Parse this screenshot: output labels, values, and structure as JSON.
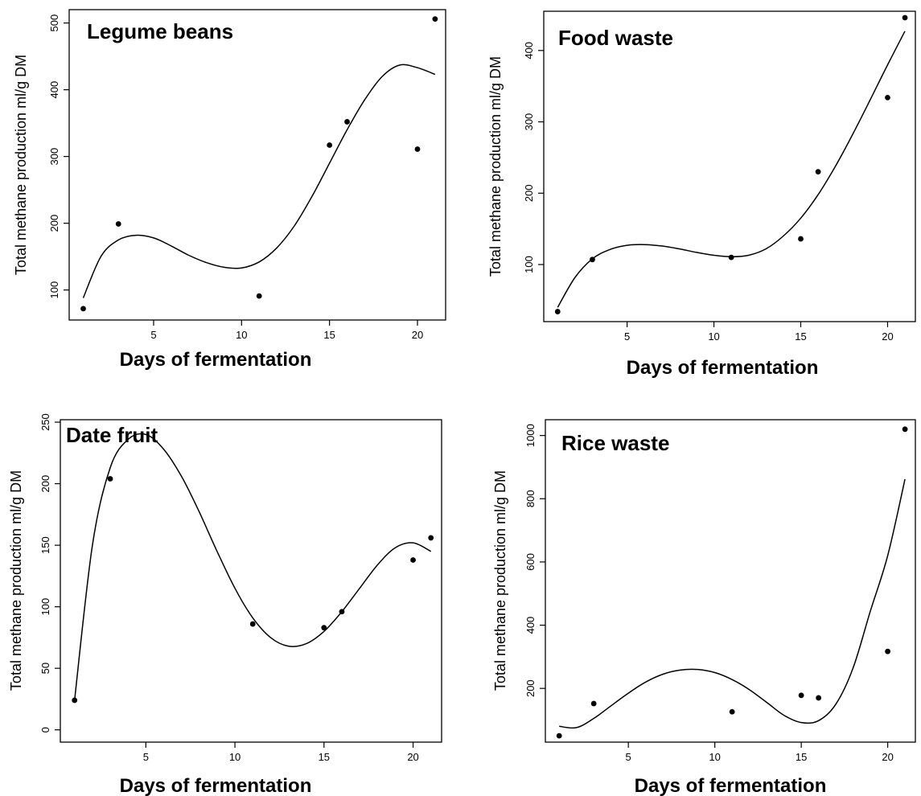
{
  "chart_data": [
    {
      "type": "scatter",
      "title": "Legume beans",
      "xlabel": "Days of fermentation",
      "ylabel": "Total methane production ml/g DM",
      "xlim": [
        0.2,
        21.6
      ],
      "ylim": [
        55,
        520
      ],
      "xticks": [
        5,
        10,
        15,
        20
      ],
      "yticks": [
        100,
        200,
        300,
        400,
        500
      ],
      "points": [
        {
          "x": 1,
          "y": 72
        },
        {
          "x": 3,
          "y": 199
        },
        {
          "x": 11,
          "y": 91
        },
        {
          "x": 15,
          "y": 317
        },
        {
          "x": 16,
          "y": 352
        },
        {
          "x": 20,
          "y": 311
        },
        {
          "x": 21,
          "y": 506
        }
      ],
      "fit": {
        "x": [
          1,
          2,
          3,
          4,
          5,
          6,
          7,
          8,
          9,
          10,
          11,
          12,
          13,
          14,
          15,
          16,
          17,
          18,
          19,
          20,
          21
        ],
        "y": [
          88,
          150,
          175,
          182,
          178,
          166,
          152,
          141,
          134,
          133,
          142,
          163,
          196,
          240,
          290,
          340,
          385,
          420,
          437,
          433,
          423
        ]
      }
    },
    {
      "type": "scatter",
      "title": "Food waste",
      "xlabel": "Days of fermentation",
      "ylabel": "Total methane production ml/g DM",
      "xlim": [
        0.2,
        21.6
      ],
      "ylim": [
        20,
        455
      ],
      "xticks": [
        5,
        10,
        15,
        20
      ],
      "yticks": [
        100,
        200,
        300,
        400
      ],
      "points": [
        {
          "x": 1,
          "y": 34
        },
        {
          "x": 3,
          "y": 107
        },
        {
          "x": 11,
          "y": 110
        },
        {
          "x": 15,
          "y": 136
        },
        {
          "x": 16,
          "y": 230
        },
        {
          "x": 20,
          "y": 334
        },
        {
          "x": 21,
          "y": 446
        }
      ],
      "fit": {
        "x": [
          1,
          2,
          3,
          4,
          5,
          6,
          7,
          8,
          9,
          10,
          11,
          12,
          13,
          14,
          15,
          16,
          17,
          18,
          19,
          20,
          21
        ],
        "y": [
          40,
          82,
          108,
          121,
          127,
          128,
          126,
          122,
          117,
          113,
          111,
          113,
          122,
          140,
          165,
          198,
          238,
          283,
          331,
          380,
          427
        ]
      }
    },
    {
      "type": "scatter",
      "title": "Date fruit",
      "xlabel": "Days of fermentation",
      "ylabel": "Total methane production ml/g DM",
      "xlim": [
        0.2,
        21.6
      ],
      "ylim": [
        -10,
        252
      ],
      "xticks": [
        5,
        10,
        15,
        20
      ],
      "yticks": [
        0,
        50,
        100,
        150,
        200,
        250
      ],
      "points": [
        {
          "x": 1,
          "y": 24
        },
        {
          "x": 3,
          "y": 204
        },
        {
          "x": 11,
          "y": 86
        },
        {
          "x": 15,
          "y": 83
        },
        {
          "x": 16,
          "y": 96
        },
        {
          "x": 20,
          "y": 138
        },
        {
          "x": 21,
          "y": 156
        }
      ],
      "fit": {
        "x": [
          1,
          2,
          3,
          4,
          5,
          6,
          7,
          8,
          9,
          10,
          11,
          12,
          13,
          14,
          15,
          16,
          17,
          18,
          19,
          20,
          21
        ],
        "y": [
          24,
          150,
          213,
          236,
          240,
          228,
          206,
          177,
          145,
          115,
          91,
          75,
          68,
          70,
          80,
          96,
          115,
          134,
          148,
          152,
          145
        ]
      }
    },
    {
      "type": "scatter",
      "title": "Rice waste",
      "xlabel": "Days of fermentation",
      "ylabel": "Total methane production ml/g DM",
      "xlim": [
        0.2,
        21.6
      ],
      "ylim": [
        30,
        1050
      ],
      "xticks": [
        5,
        10,
        15,
        20
      ],
      "yticks": [
        200,
        400,
        600,
        800,
        1000
      ],
      "points": [
        {
          "x": 1,
          "y": 50
        },
        {
          "x": 3,
          "y": 152
        },
        {
          "x": 11,
          "y": 126
        },
        {
          "x": 15,
          "y": 178
        },
        {
          "x": 16,
          "y": 170
        },
        {
          "x": 20,
          "y": 317
        },
        {
          "x": 21,
          "y": 1020
        }
      ],
      "fit": {
        "x": [
          1,
          2,
          3,
          4,
          5,
          6,
          7,
          8,
          9,
          10,
          11,
          12,
          13,
          14,
          15,
          16,
          17,
          18,
          19,
          20,
          21
        ],
        "y": [
          80,
          76,
          105,
          145,
          185,
          220,
          245,
          258,
          260,
          250,
          228,
          196,
          156,
          115,
          92,
          98,
          150,
          265,
          445,
          620,
          862
        ]
      }
    }
  ]
}
